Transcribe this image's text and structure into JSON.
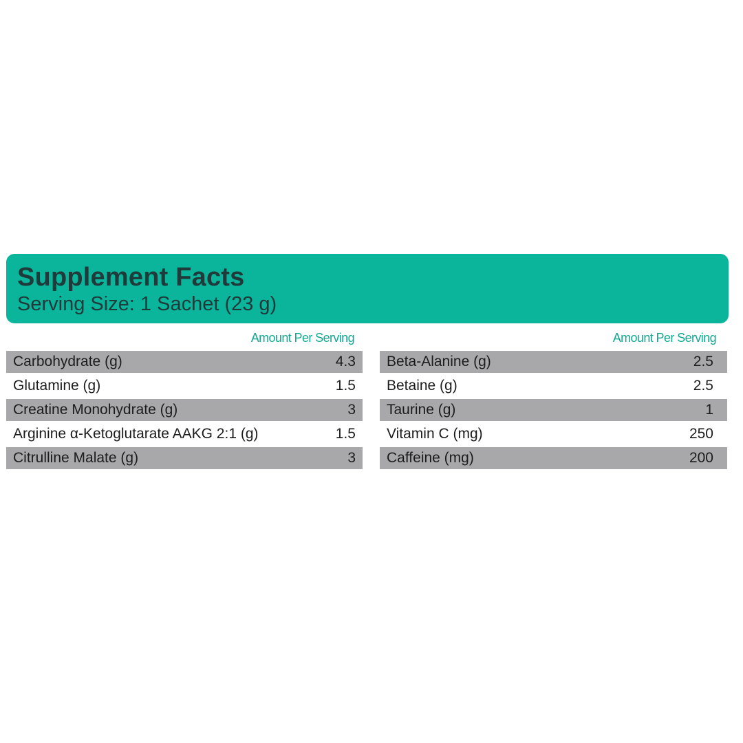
{
  "colors": {
    "header_background": "#0bb59c",
    "amount_header_text": "#14a892",
    "shaded_row": "#a8a8ab",
    "title_text": "#1f3a3a"
  },
  "header": {
    "title": "Supplement Facts",
    "serving_size": "Serving Size: 1 Sachet (23 g)"
  },
  "left_column": {
    "amount_header": "Amount Per Serving",
    "rows": [
      {
        "name": "Carbohydrate (g)",
        "value": "4.3",
        "shaded": true
      },
      {
        "name": "Glutamine (g)",
        "value": "1.5",
        "shaded": false
      },
      {
        "name": "Creatine Monohydrate (g)",
        "value": "3",
        "shaded": true
      },
      {
        "name": "Arginine α-Ketoglutarate AAKG 2:1 (g)",
        "value": "1.5",
        "shaded": false
      },
      {
        "name": "Citrulline Malate (g)",
        "value": "3",
        "shaded": true
      }
    ]
  },
  "right_column": {
    "amount_header": "Amount Per Serving",
    "rows": [
      {
        "name": "Beta-Alanine (g)",
        "value": "2.5",
        "shaded": true
      },
      {
        "name": "Betaine (g)",
        "value": "2.5",
        "shaded": false
      },
      {
        "name": "Taurine (g)",
        "value": "1",
        "shaded": true
      },
      {
        "name": "Vitamin C (mg)",
        "value": "250",
        "shaded": false
      },
      {
        "name": "Caffeine (mg)",
        "value": "200",
        "shaded": true
      }
    ]
  }
}
